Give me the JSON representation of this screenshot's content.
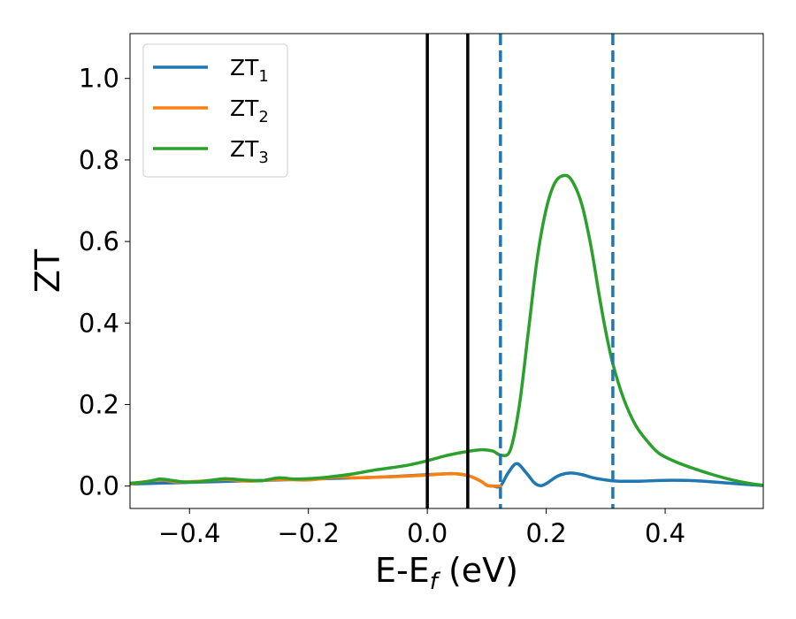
{
  "chart_data": {
    "type": "line",
    "xlabel_main": "E-E",
    "xlabel_sub": "f",
    "xlabel_unit": " (eV)",
    "ylabel": "ZT",
    "xlim": [
      -0.5,
      0.565
    ],
    "ylim": [
      -0.055,
      1.11
    ],
    "x_ticks": [
      -0.4,
      -0.2,
      0.0,
      0.2,
      0.4
    ],
    "x_tick_labels": [
      "−0.4",
      "−0.2",
      "0.0",
      "0.2",
      "0.4"
    ],
    "y_ticks": [
      0.0,
      0.2,
      0.4,
      0.6,
      0.8,
      1.0
    ],
    "y_tick_labels": [
      "0.0",
      "0.2",
      "0.4",
      "0.6",
      "0.8",
      "1.0"
    ],
    "grid": false,
    "legend_position": "top-left",
    "vlines_solid": {
      "color": "#000000",
      "x": [
        0.0,
        0.068
      ]
    },
    "vlines_dashed": {
      "color": "#1f77b4",
      "x": [
        0.123,
        0.312
      ]
    },
    "series": [
      {
        "name": "ZT",
        "subscript": "1",
        "color": "#1f77b4",
        "points": [
          [
            -0.5,
            0.005
          ],
          [
            -0.45,
            0.007
          ],
          [
            -0.4,
            0.009
          ],
          [
            -0.35,
            0.011
          ],
          [
            -0.3,
            0.013
          ],
          [
            -0.25,
            0.015
          ],
          [
            -0.2,
            0.017
          ],
          [
            -0.15,
            0.019
          ],
          [
            -0.1,
            0.021
          ],
          [
            -0.05,
            0.024
          ],
          [
            0.0,
            0.028
          ],
          [
            0.03,
            0.03
          ],
          [
            0.05,
            0.03
          ],
          [
            0.07,
            0.025
          ],
          [
            0.09,
            0.012
          ],
          [
            0.1,
            0.002
          ],
          [
            0.11,
            0.0
          ],
          [
            0.123,
            0.0
          ],
          [
            0.135,
            0.03
          ],
          [
            0.15,
            0.055
          ],
          [
            0.165,
            0.035
          ],
          [
            0.18,
            0.008
          ],
          [
            0.19,
            0.001
          ],
          [
            0.2,
            0.006
          ],
          [
            0.22,
            0.025
          ],
          [
            0.24,
            0.032
          ],
          [
            0.26,
            0.028
          ],
          [
            0.28,
            0.02
          ],
          [
            0.3,
            0.015
          ],
          [
            0.32,
            0.012
          ],
          [
            0.36,
            0.012
          ],
          [
            0.4,
            0.014
          ],
          [
            0.45,
            0.013
          ],
          [
            0.5,
            0.008
          ],
          [
            0.565,
            0.001
          ]
        ]
      },
      {
        "name": "ZT",
        "subscript": "2",
        "color": "#ff7f0e",
        "points": [
          [
            -0.5,
            0.005
          ],
          [
            -0.45,
            0.015
          ],
          [
            -0.42,
            0.01
          ],
          [
            -0.38,
            0.012
          ],
          [
            -0.34,
            0.016
          ],
          [
            -0.3,
            0.012
          ],
          [
            -0.25,
            0.016
          ],
          [
            -0.2,
            0.015
          ],
          [
            -0.15,
            0.022
          ],
          [
            -0.12,
            0.02
          ],
          [
            -0.08,
            0.022
          ],
          [
            -0.04,
            0.024
          ],
          [
            0.0,
            0.027
          ],
          [
            0.03,
            0.03
          ],
          [
            0.05,
            0.03
          ],
          [
            0.07,
            0.025
          ],
          [
            0.09,
            0.012
          ],
          [
            0.1,
            0.002
          ],
          [
            0.11,
            0.0
          ],
          [
            0.123,
            0.0
          ]
        ]
      },
      {
        "name": "ZT",
        "subscript": "3",
        "color": "#2ca02c",
        "points": [
          [
            -0.5,
            0.007
          ],
          [
            -0.47,
            0.011
          ],
          [
            -0.45,
            0.017
          ],
          [
            -0.43,
            0.014
          ],
          [
            -0.41,
            0.01
          ],
          [
            -0.39,
            0.01
          ],
          [
            -0.37,
            0.013
          ],
          [
            -0.34,
            0.018
          ],
          [
            -0.31,
            0.015
          ],
          [
            -0.28,
            0.013
          ],
          [
            -0.25,
            0.02
          ],
          [
            -0.22,
            0.017
          ],
          [
            -0.18,
            0.02
          ],
          [
            -0.15,
            0.025
          ],
          [
            -0.12,
            0.031
          ],
          [
            -0.09,
            0.039
          ],
          [
            -0.06,
            0.045
          ],
          [
            -0.03,
            0.052
          ],
          [
            0.0,
            0.062
          ],
          [
            0.03,
            0.074
          ],
          [
            0.06,
            0.083
          ],
          [
            0.09,
            0.089
          ],
          [
            0.11,
            0.086
          ],
          [
            0.125,
            0.075
          ],
          [
            0.14,
            0.09
          ],
          [
            0.155,
            0.2
          ],
          [
            0.17,
            0.38
          ],
          [
            0.185,
            0.56
          ],
          [
            0.2,
            0.68
          ],
          [
            0.215,
            0.745
          ],
          [
            0.232,
            0.762
          ],
          [
            0.245,
            0.745
          ],
          [
            0.26,
            0.69
          ],
          [
            0.275,
            0.59
          ],
          [
            0.29,
            0.46
          ],
          [
            0.3,
            0.38
          ],
          [
            0.312,
            0.3
          ],
          [
            0.33,
            0.215
          ],
          [
            0.35,
            0.15
          ],
          [
            0.37,
            0.11
          ],
          [
            0.39,
            0.08
          ],
          [
            0.42,
            0.058
          ],
          [
            0.45,
            0.042
          ],
          [
            0.48,
            0.028
          ],
          [
            0.51,
            0.016
          ],
          [
            0.54,
            0.007
          ],
          [
            0.565,
            0.002
          ]
        ]
      }
    ]
  }
}
